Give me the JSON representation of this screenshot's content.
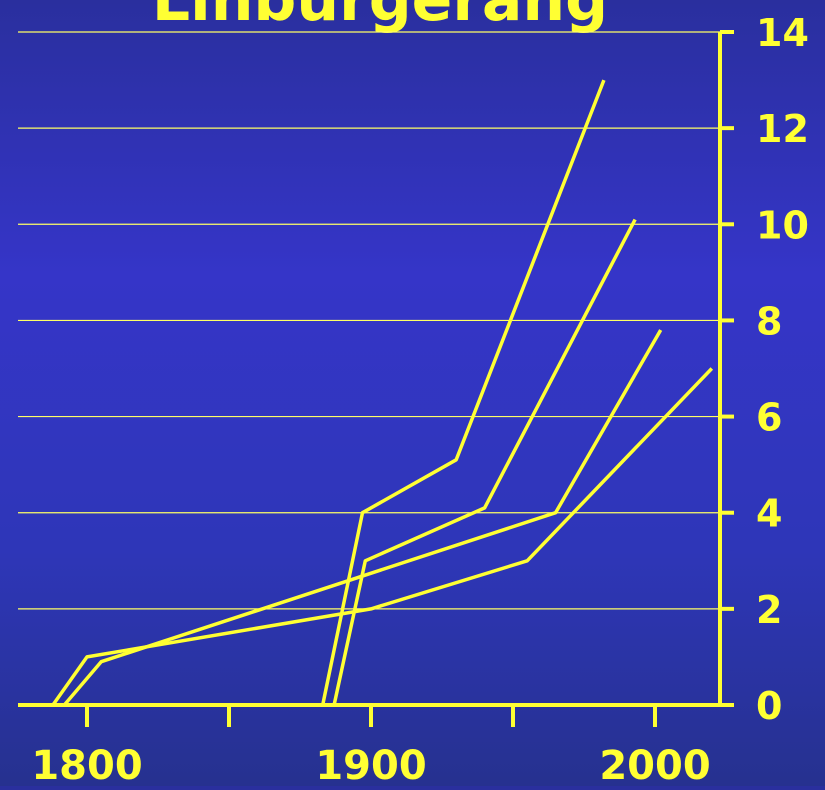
{
  "chart_data": {
    "type": "line",
    "title": "Linburgerang",
    "xlabel": "",
    "ylabel": "",
    "xlim": [
      1780,
      2025
    ],
    "ylim": [
      0,
      14
    ],
    "x_ticks": [
      1800,
      1900,
      2000
    ],
    "x_minor_ticks": [
      1850,
      1950
    ],
    "y_ticks": [
      0,
      2,
      4,
      6,
      8,
      10,
      12,
      14
    ],
    "grid": true,
    "legend": "none",
    "colors": {
      "line": "#ffff33",
      "grid": "#ffff66"
    },
    "series": [
      {
        "x": [
          1788,
          1800,
          1900,
          1955,
          2020
        ],
        "y": [
          0,
          1,
          2,
          3,
          7
        ]
      },
      {
        "x": [
          1792,
          1805,
          1965,
          2002
        ],
        "y": [
          0,
          0.9,
          4,
          7.8
        ]
      },
      {
        "x": [
          1883,
          1897,
          1930,
          1982
        ],
        "y": [
          0,
          4,
          5.1,
          13
        ]
      },
      {
        "x": [
          1887,
          1898,
          1940,
          1993
        ],
        "y": [
          0,
          3,
          4.1,
          10.1
        ]
      }
    ]
  }
}
